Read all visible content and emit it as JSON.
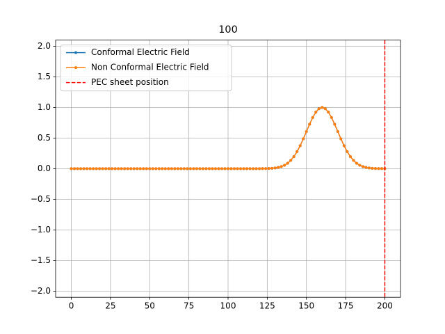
{
  "chart_data": {
    "type": "line",
    "title": "100",
    "x": [
      0,
      2,
      4,
      6,
      8,
      10,
      12,
      14,
      16,
      18,
      20,
      22,
      24,
      26,
      28,
      30,
      32,
      34,
      36,
      38,
      40,
      42,
      44,
      46,
      48,
      50,
      52,
      54,
      56,
      58,
      60,
      62,
      64,
      66,
      68,
      70,
      72,
      74,
      76,
      78,
      80,
      82,
      84,
      86,
      88,
      90,
      92,
      94,
      96,
      98,
      100,
      102,
      104,
      106,
      108,
      110,
      112,
      114,
      116,
      118,
      120,
      122,
      124,
      126,
      128,
      130,
      132,
      134,
      136,
      138,
      140,
      142,
      144,
      146,
      148,
      150,
      152,
      154,
      156,
      158,
      160,
      162,
      164,
      166,
      168,
      170,
      172,
      174,
      176,
      178,
      180,
      182,
      184,
      186,
      188,
      190,
      192,
      194,
      196,
      198,
      200
    ],
    "series": [
      {
        "name": "Conformal Electric Field",
        "color": "#1f77b4",
        "values": [
          0,
          0,
          0,
          0,
          0,
          0,
          0,
          0,
          0,
          0,
          0,
          0,
          0,
          0,
          0,
          0,
          0,
          0,
          0,
          0,
          0,
          0,
          0,
          0,
          0,
          0,
          0,
          0,
          0,
          0,
          0,
          0,
          0,
          0,
          0,
          0,
          0,
          0,
          0,
          0,
          0,
          0,
          0,
          0,
          0,
          0,
          0,
          0,
          0,
          0,
          0,
          0,
          0,
          0,
          0,
          0,
          0,
          0,
          0,
          0,
          0,
          0.001,
          0.002,
          0.003,
          0.006,
          0.011,
          0.02,
          0.034,
          0.056,
          0.089,
          0.135,
          0.198,
          0.278,
          0.375,
          0.487,
          0.607,
          0.726,
          0.835,
          0.923,
          0.98,
          1,
          0.98,
          0.923,
          0.835,
          0.726,
          0.607,
          0.487,
          0.375,
          0.278,
          0.198,
          0.135,
          0.089,
          0.056,
          0.034,
          0.02,
          0.011,
          0.006,
          0.003,
          0.002,
          0.001,
          0
        ]
      },
      {
        "name": "Non Conformal Electric Field",
        "color": "#ff7f0e",
        "values": [
          0,
          0,
          0,
          0,
          0,
          0,
          0,
          0,
          0,
          0,
          0,
          0,
          0,
          0,
          0,
          0,
          0,
          0,
          0,
          0,
          0,
          0,
          0,
          0,
          0,
          0,
          0,
          0,
          0,
          0,
          0,
          0,
          0,
          0,
          0,
          0,
          0,
          0,
          0,
          0,
          0,
          0,
          0,
          0,
          0,
          0,
          0,
          0,
          0,
          0,
          0,
          0,
          0,
          0,
          0,
          0,
          0,
          0,
          0,
          0,
          0,
          0.001,
          0.002,
          0.003,
          0.006,
          0.011,
          0.02,
          0.034,
          0.056,
          0.089,
          0.135,
          0.198,
          0.278,
          0.375,
          0.487,
          0.607,
          0.726,
          0.835,
          0.923,
          0.98,
          1,
          0.98,
          0.923,
          0.835,
          0.726,
          0.607,
          0.487,
          0.375,
          0.278,
          0.198,
          0.135,
          0.089,
          0.056,
          0.034,
          0.02,
          0.011,
          0.006,
          0.003,
          0.002,
          0.001,
          0
        ]
      }
    ],
    "vline": {
      "name": "PEC sheet position",
      "color": "#ff0000",
      "x": 200
    },
    "xlim": [
      -10,
      210
    ],
    "xticks": [
      0,
      25,
      50,
      75,
      100,
      125,
      150,
      175,
      200
    ],
    "ylim": [
      -2.1,
      2.1
    ],
    "yticks": [
      {
        "value": -2,
        "label": "−2.0"
      },
      {
        "value": -1.5,
        "label": "−1.5"
      },
      {
        "value": -1,
        "label": "−1.0"
      },
      {
        "value": -0.5,
        "label": "−0.5"
      },
      {
        "value": 0,
        "label": "0.0"
      },
      0.5,
      {
        "value": 1,
        "label": "1.0"
      },
      1.5,
      {
        "value": 2,
        "label": "2.0"
      }
    ],
    "grid": true,
    "legend": "upper left"
  }
}
